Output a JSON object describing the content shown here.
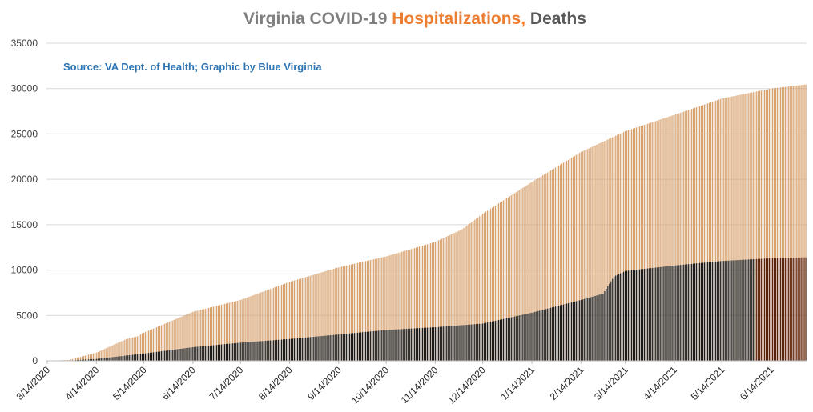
{
  "colors": {
    "title_main": "#7f7f7f",
    "title_hosp": "#ed7d31",
    "title_deaths": "#595959",
    "hospitalizations": "#d7a16e",
    "deaths": "#1a1a1a",
    "deaths_recent": "#5b200a",
    "source": "#2e75b6",
    "gridline": "#d9d9d9"
  },
  "chart_data": {
    "type": "bar",
    "title_parts": [
      "Virginia COVID-19 ",
      "Hospitalizations,",
      " Deaths"
    ],
    "annotation": "Source: VA Dept. of Health; Graphic by Blue Virginia",
    "ylim": [
      0,
      35000
    ],
    "yticks": [
      "0",
      "5000",
      "10000",
      "15000",
      "20000",
      "25000",
      "30000",
      "35000"
    ],
    "x_start": "3/14/2020",
    "x_end": "7/6/2021",
    "x_tick_labels": [
      "3/14/2020",
      "4/14/2020",
      "5/14/2020",
      "6/14/2020",
      "7/14/2020",
      "8/14/2020",
      "9/14/2020",
      "10/14/2020",
      "11/14/2020",
      "12/14/2020",
      "1/14/2021",
      "2/14/2021",
      "3/14/2021",
      "4/14/2021",
      "5/14/2021",
      "6/14/2021"
    ],
    "series": [
      {
        "key": "hospitalizations",
        "points": [
          [
            "3/14/2020",
            0
          ],
          [
            "3/28/2020",
            100
          ],
          [
            "4/14/2020",
            900
          ],
          [
            "5/3/2020",
            2400
          ],
          [
            "5/10/2020",
            2700
          ],
          [
            "5/14/2020",
            3100
          ],
          [
            "6/14/2020",
            5400
          ],
          [
            "7/14/2020",
            6700
          ],
          [
            "8/14/2020",
            8700
          ],
          [
            "9/14/2020",
            10300
          ],
          [
            "10/14/2020",
            11500
          ],
          [
            "11/14/2020",
            13100
          ],
          [
            "12/1/2020",
            14500
          ],
          [
            "12/14/2020",
            16200
          ],
          [
            "1/14/2021",
            19700
          ],
          [
            "2/14/2021",
            23000
          ],
          [
            "3/14/2021",
            25300
          ],
          [
            "4/14/2021",
            27100
          ],
          [
            "5/14/2021",
            28900
          ],
          [
            "6/14/2021",
            30000
          ],
          [
            "7/6/2021",
            30450
          ]
        ]
      },
      {
        "key": "deaths",
        "points": [
          [
            "3/14/2020",
            0
          ],
          [
            "3/28/2020",
            30
          ],
          [
            "4/14/2020",
            200
          ],
          [
            "5/14/2020",
            800
          ],
          [
            "6/14/2020",
            1500
          ],
          [
            "7/14/2020",
            2000
          ],
          [
            "8/14/2020",
            2400
          ],
          [
            "9/14/2020",
            2900
          ],
          [
            "10/14/2020",
            3400
          ],
          [
            "11/14/2020",
            3700
          ],
          [
            "12/14/2020",
            4100
          ],
          [
            "1/14/2021",
            5300
          ],
          [
            "2/14/2021",
            6700
          ],
          [
            "2/28/2021",
            7400
          ],
          [
            "3/7/2021",
            9300
          ],
          [
            "3/14/2021",
            9900
          ],
          [
            "4/14/2021",
            10500
          ],
          [
            "5/14/2021",
            11000
          ],
          [
            "6/14/2021",
            11300
          ],
          [
            "7/6/2021",
            11400
          ]
        ],
        "recent_color_from": "6/4/2021"
      }
    ]
  }
}
